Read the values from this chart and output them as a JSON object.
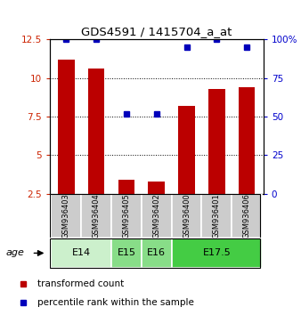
{
  "title": "GDS4591 / 1415704_a_at",
  "samples": [
    "GSM936403",
    "GSM936404",
    "GSM936405",
    "GSM936402",
    "GSM936400",
    "GSM936401",
    "GSM936406"
  ],
  "bar_values": [
    11.2,
    10.6,
    3.4,
    3.3,
    8.2,
    9.3,
    9.4
  ],
  "dot_values": [
    100,
    100,
    52,
    52,
    95,
    100,
    95
  ],
  "age_groups": [
    {
      "label": "E14",
      "samples": [
        0,
        1
      ],
      "color": "#ccf0cc"
    },
    {
      "label": "E15",
      "samples": [
        2
      ],
      "color": "#88dd88"
    },
    {
      "label": "E16",
      "samples": [
        3
      ],
      "color": "#88dd88"
    },
    {
      "label": "E17.5",
      "samples": [
        4,
        5,
        6
      ],
      "color": "#44cc44"
    }
  ],
  "sample_bg_color": "#cccccc",
  "bar_color": "#bb0000",
  "dot_color": "#0000bb",
  "ylim_left": [
    2.5,
    12.5
  ],
  "ylim_right": [
    0,
    100
  ],
  "yticks_left": [
    2.5,
    5.0,
    7.5,
    10.0,
    12.5
  ],
  "yticks_right": [
    0,
    25,
    50,
    75,
    100
  ],
  "ytick_labels_left": [
    "2.5",
    "5",
    "7.5",
    "10",
    "12.5"
  ],
  "ytick_labels_right": [
    "0",
    "25",
    "50",
    "75",
    "100%"
  ],
  "grid_lines": [
    5.0,
    7.5,
    10.0
  ],
  "legend_red": "transformed count",
  "legend_blue": "percentile rank within the sample",
  "age_label": "age"
}
